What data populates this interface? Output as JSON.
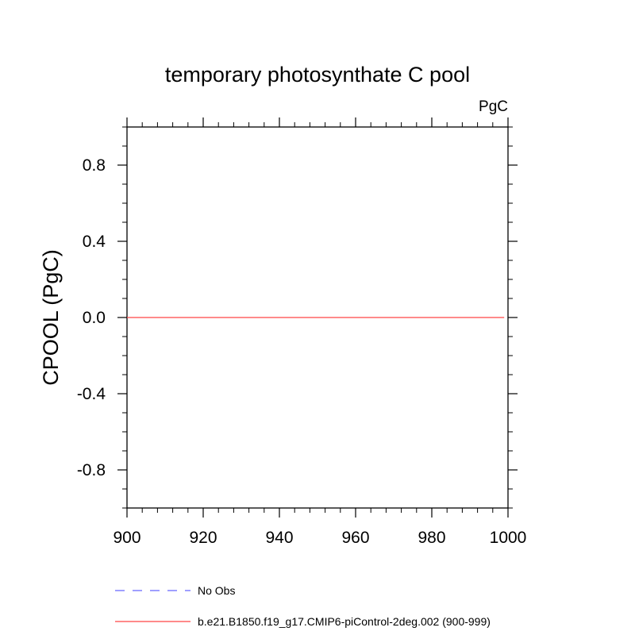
{
  "chart_data": {
    "type": "line",
    "title": "temporary photosynthate C pool",
    "units_label": "PgC",
    "ylabel": "CPOOL  (PgC)",
    "xlabel": "",
    "xlim": [
      900,
      1000
    ],
    "ylim": [
      -1.0,
      1.0
    ],
    "x_ticks": [
      900,
      920,
      940,
      960,
      980,
      1000
    ],
    "x_tick_labels": [
      "900",
      "920",
      "940",
      "960",
      "980",
      "1000"
    ],
    "y_ticks": [
      -0.8,
      -0.4,
      0.0,
      0.4,
      0.8
    ],
    "y_tick_labels": [
      "-0.8",
      "-0.4",
      "0.0",
      "0.4",
      "0.8"
    ],
    "grid": false,
    "legend_position": "bottom",
    "series": [
      {
        "name": "No Obs",
        "color": "#6666ff",
        "style": "dashed",
        "x": [],
        "values": []
      },
      {
        "name": "b.e21.B1850.f19_g17.CMIP6-piControl-2deg.002 (900-999)",
        "color": "#ff4444",
        "style": "solid",
        "x": [
          900,
          999
        ],
        "values": [
          0.0,
          0.0
        ]
      }
    ]
  }
}
